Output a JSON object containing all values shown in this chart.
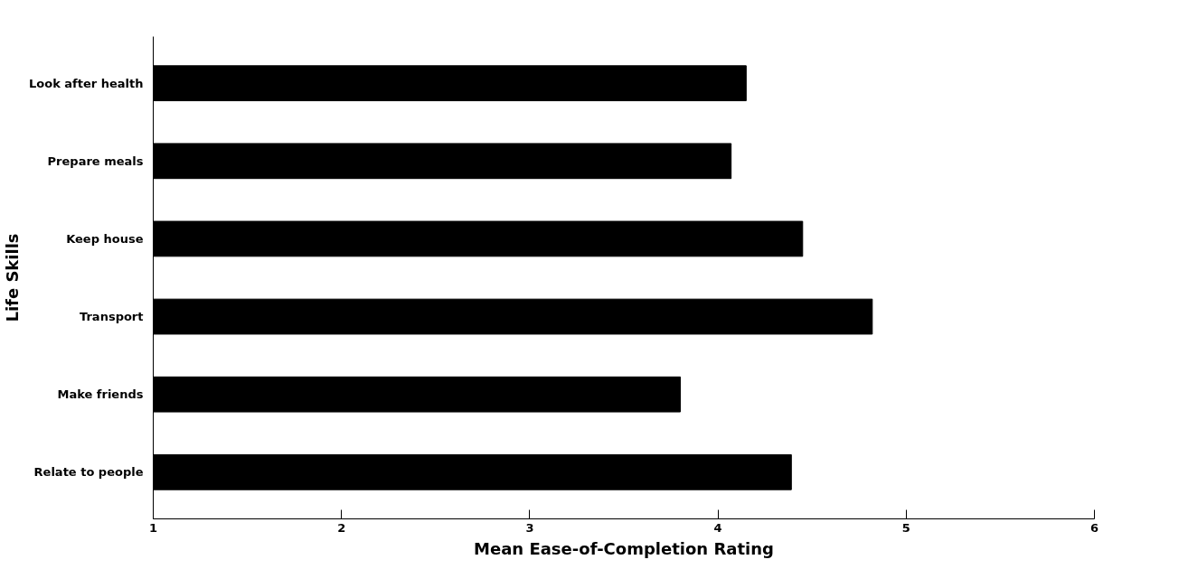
{
  "chart_data": {
    "type": "bar",
    "orientation": "horizontal",
    "xlabel": "Mean Ease-of-Completion Rating",
    "ylabel": "Life Skills",
    "categories": [
      "Look after health",
      "Prepare meals",
      "Keep house",
      "Transport",
      "Make friends",
      "Relate to people"
    ],
    "series": [
      {
        "color": "#000000",
        "values": [
          4.15,
          4.07,
          4.45,
          4.82,
          3.8,
          4.39
        ]
      }
    ],
    "xlim": [
      1,
      6
    ],
    "xticks": [
      1,
      2,
      3,
      4,
      5,
      6
    ],
    "grid": false
  }
}
